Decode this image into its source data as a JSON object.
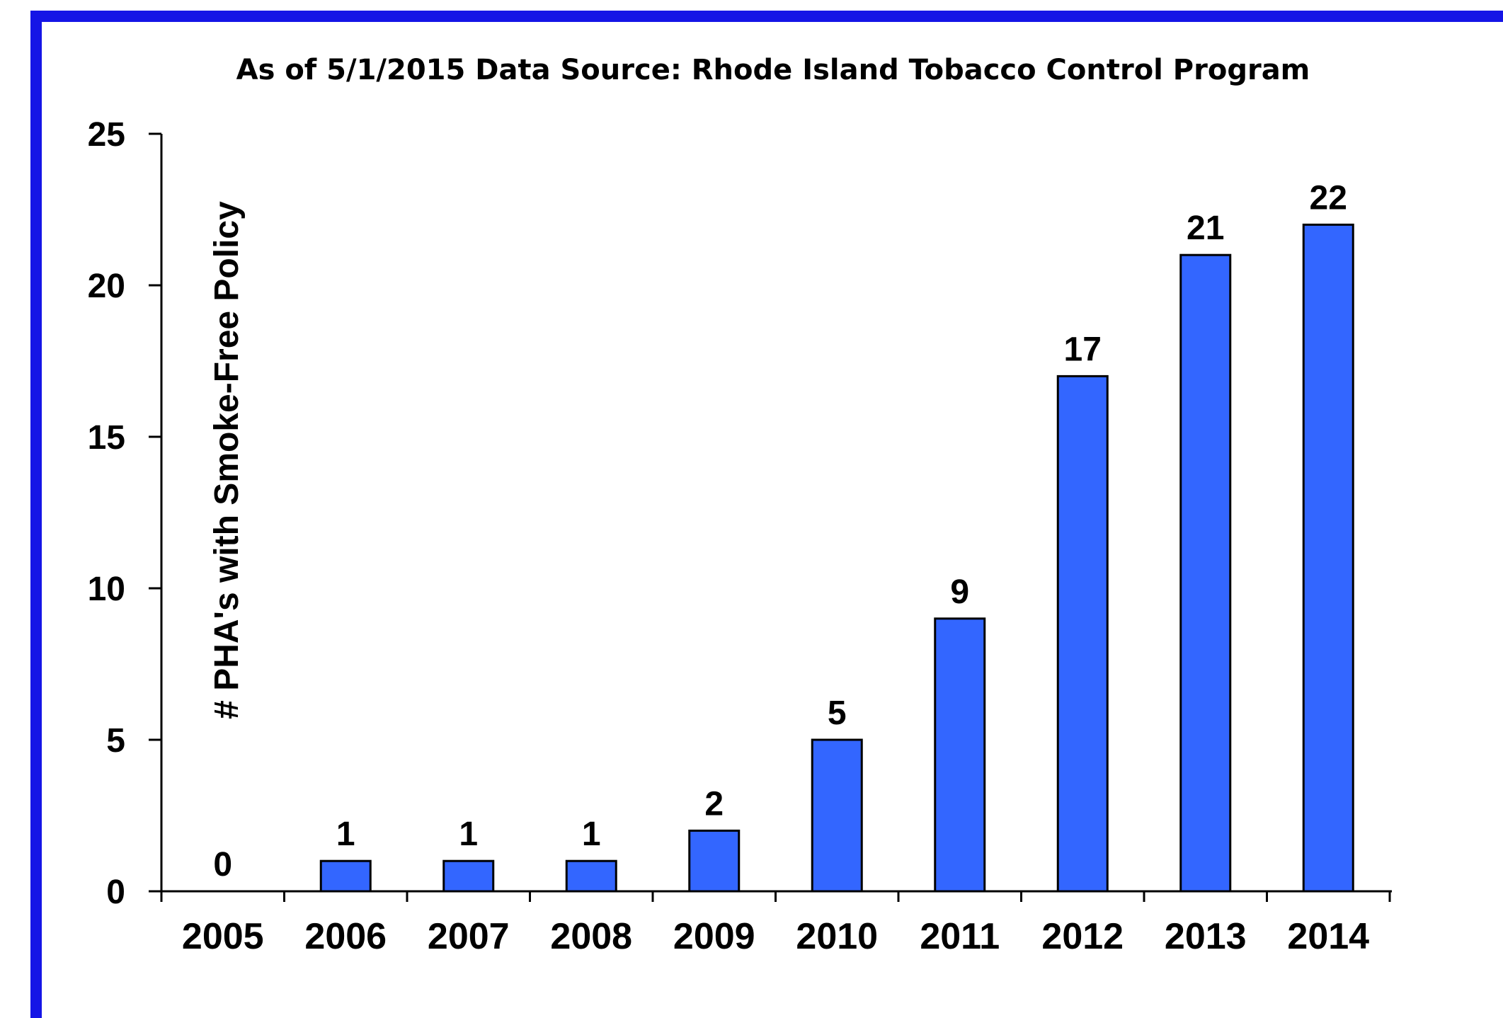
{
  "colors": {
    "frame_border": "#1515e6",
    "bar_fill": "#3366ff",
    "bar_stroke": "#000000",
    "axis": "#000000",
    "background": "#ffffff"
  },
  "chart_data": {
    "type": "bar",
    "title": "As of 5/1/2015 Data Source: Rhode Island Tobacco Control Program",
    "ylabel": "# PHA's with Smoke-Free Policy",
    "xlabel": "",
    "categories": [
      "2005",
      "2006",
      "2007",
      "2008",
      "2009",
      "2010",
      "2011",
      "2012",
      "2013",
      "2014"
    ],
    "values": [
      0,
      1,
      1,
      1,
      2,
      5,
      9,
      17,
      21,
      22
    ],
    "data_labels": [
      "0",
      "1",
      "1",
      "1",
      "2",
      "5",
      "9",
      "17",
      "21",
      "22"
    ],
    "ylim": [
      0,
      25
    ],
    "yticks": [
      0,
      5,
      10,
      15,
      20,
      25
    ],
    "ytick_labels": [
      "0",
      "5",
      "10",
      "15",
      "20",
      "25"
    ],
    "grid": false,
    "legend": "none"
  }
}
